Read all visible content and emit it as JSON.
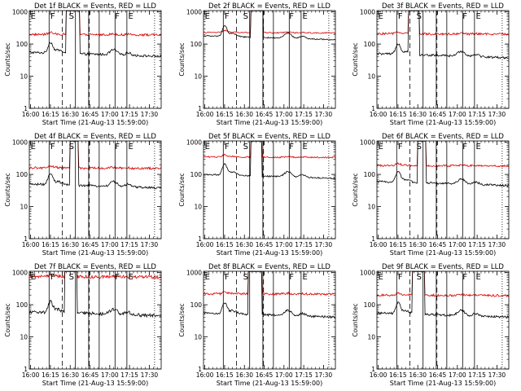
{
  "colors": {
    "events": "#000000",
    "lld": "#dd0000",
    "background": "#ffffff"
  },
  "shared": {
    "xlabel": "Start Time (21-Aug-13 15:59:00)",
    "ylabel": "Counts/sec",
    "x_ticks": [
      "16:00",
      "16:15",
      "16:30",
      "16:45",
      "17:00",
      "17:15",
      "17:30"
    ],
    "y_ticks": [
      "1",
      "10",
      "100",
      "1000"
    ],
    "xlim_minutes": [
      0,
      100
    ],
    "ylim": [
      1,
      1100
    ],
    "y_scale": "log",
    "solid_markers": [
      15,
      35,
      45,
      53,
      65,
      74
    ],
    "dashed_markers": [
      25,
      45.5
    ],
    "dotted_markers": [
      95
    ],
    "marker_letters": [
      {
        "text": "E",
        "x": 1
      },
      {
        "text": "F",
        "x": 16
      },
      {
        "text": "S",
        "x": 30
      },
      {
        "text": "F",
        "x": 65
      },
      {
        "text": "E",
        "x": 75
      }
    ]
  },
  "chart_data": [
    {
      "type": "line",
      "title": "Det 1f BLACK = Events, RED = LLD",
      "events_base": 55,
      "lld_base": 200,
      "saturate": [
        29,
        37
      ],
      "jitter": 0.08
    },
    {
      "type": "line",
      "title": "Det 2f BLACK = Events, RED = LLD",
      "events_base": 180,
      "lld_base": 230,
      "saturate": [
        37,
        44
      ],
      "jitter": 0.04
    },
    {
      "type": "line",
      "title": "Det 3f BLACK = Events, RED = LLD",
      "events_base": 50,
      "lld_base": 210,
      "saturate": [
        25,
        31
      ],
      "jitter": 0.08
    },
    {
      "type": "line",
      "title": "Det 4f BLACK = Events, RED = LLD",
      "events_base": 50,
      "lld_base": 160,
      "saturate": [
        32,
        36
      ],
      "jitter": 0.08
    },
    {
      "type": "line",
      "title": "Det 5f BLACK = Events, RED = LLD",
      "events_base": 100,
      "lld_base": 350,
      "saturate": [
        37,
        43
      ],
      "jitter": 0.05
    },
    {
      "type": "line",
      "title": "Det 6f BLACK = Events, RED = LLD",
      "events_base": 60,
      "lld_base": 190,
      "saturate": [
        32,
        36
      ],
      "jitter": 0.07
    },
    {
      "type": "line",
      "title": "Det 7f BLACK = Events, RED = LLD",
      "events_base": 60,
      "lld_base": 750,
      "saturate": [
        28,
        35
      ],
      "jitter": 0.12
    },
    {
      "type": "line",
      "title": "Det 8f BLACK = Events, RED = LLD",
      "events_base": 55,
      "lld_base": 220,
      "saturate": [
        35,
        43
      ],
      "jitter": 0.08
    },
    {
      "type": "line",
      "title": "Det 9f BLACK = Events, RED = LLD",
      "events_base": 55,
      "lld_base": 200,
      "saturate": [
        28,
        35
      ],
      "jitter": 0.08
    }
  ]
}
